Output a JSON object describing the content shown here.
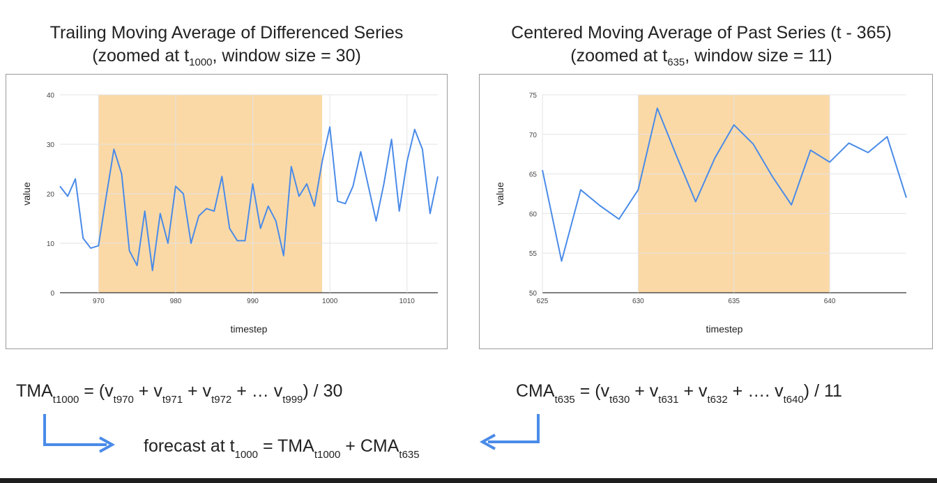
{
  "left_title": {
    "line1": "Trailing Moving Average of Differenced Series",
    "line2_pre": "(zoomed at t",
    "line2_sub": "1000",
    "line2_post": ", window size = 30)"
  },
  "right_title": {
    "line1": "Centered Moving Average of Past Series (t - 365)",
    "line2_pre": "(zoomed at t",
    "line2_sub": "635",
    "line2_post": ", window size = 11)"
  },
  "formulas": {
    "tma": {
      "name": "TMA",
      "name_sub": "t1000",
      "eq": " = (v",
      "s1": "t970",
      "p1": " + v",
      "s2": "t971",
      "p2": " + v",
      "s3": "t972",
      "p3": " + … v",
      "s4": "t999",
      "tail": ") / 30"
    },
    "cma": {
      "name": "CMA",
      "name_sub": "t635",
      "eq": " = (v",
      "s1": "t630",
      "p1": " + v",
      "s2": "t631",
      "p2": " + v",
      "s3": "t632",
      "p3": " + …. v",
      "s4": "t640",
      "tail": ") / 11"
    },
    "forecast": {
      "pre": "forecast at  t",
      "sub1": "1000",
      "mid": " = TMA",
      "sub2": "t1000",
      "plus": "  + CMA",
      "sub3": "t635"
    }
  },
  "colors": {
    "line": "#4a8be8",
    "highlight": "#fbd9a6",
    "arrow": "#4a8be8",
    "grid": "#e3e3e3"
  },
  "chart_data": [
    {
      "type": "line",
      "title": "Trailing Moving Average of Differenced Series (zoomed at t1000, window size = 30)",
      "xlabel": "timestep",
      "ylabel": "value",
      "xlim": [
        965,
        1014
      ],
      "ylim": [
        0,
        40
      ],
      "xticks": [
        970,
        980,
        990,
        1000,
        1010
      ],
      "yticks": [
        0,
        10,
        20,
        30,
        40
      ],
      "highlight": [
        970,
        999
      ],
      "grid": true,
      "x": [
        965,
        966,
        967,
        968,
        969,
        970,
        971,
        972,
        973,
        974,
        975,
        976,
        977,
        978,
        979,
        980,
        981,
        982,
        983,
        984,
        985,
        986,
        987,
        988,
        989,
        990,
        991,
        992,
        993,
        994,
        995,
        996,
        997,
        998,
        999,
        1000,
        1001,
        1002,
        1003,
        1004,
        1005,
        1006,
        1007,
        1008,
        1009,
        1010,
        1011,
        1012,
        1013,
        1014
      ],
      "y": [
        21.5,
        19.5,
        23,
        11,
        9,
        9.5,
        19.5,
        29,
        24,
        8.5,
        5.5,
        16.5,
        4.5,
        16,
        10,
        21.5,
        20,
        10,
        15.5,
        17,
        16.5,
        23.5,
        13,
        10.5,
        10.5,
        22,
        13,
        17.5,
        14.5,
        7.5,
        25.5,
        19.5,
        22,
        17.5,
        26.5,
        33.5,
        18.5,
        18,
        21.5,
        28.5,
        21.5,
        14.5,
        22,
        31,
        16.5,
        26.5,
        33,
        29,
        16,
        23.5
      ]
    },
    {
      "type": "line",
      "title": "Centered Moving Average of Past Series (t - 365) (zoomed at t635, window size = 11)",
      "xlabel": "timestep",
      "ylabel": "value",
      "xlim": [
        625,
        644
      ],
      "ylim": [
        50,
        75
      ],
      "xticks": [
        625,
        630,
        635,
        640
      ],
      "yticks": [
        50,
        55,
        60,
        65,
        70,
        75
      ],
      "highlight": [
        630,
        640
      ],
      "grid": true,
      "x": [
        625,
        626,
        627,
        628,
        629,
        630,
        631,
        632,
        633,
        634,
        635,
        636,
        637,
        638,
        639,
        640,
        641,
        642,
        643,
        644
      ],
      "y": [
        65.5,
        54,
        63,
        61,
        59.3,
        63,
        73.3,
        67.3,
        61.5,
        67,
        71.2,
        68.8,
        64.7,
        61.1,
        68,
        66.5,
        68.9,
        67.7,
        69.7,
        62
      ]
    }
  ]
}
